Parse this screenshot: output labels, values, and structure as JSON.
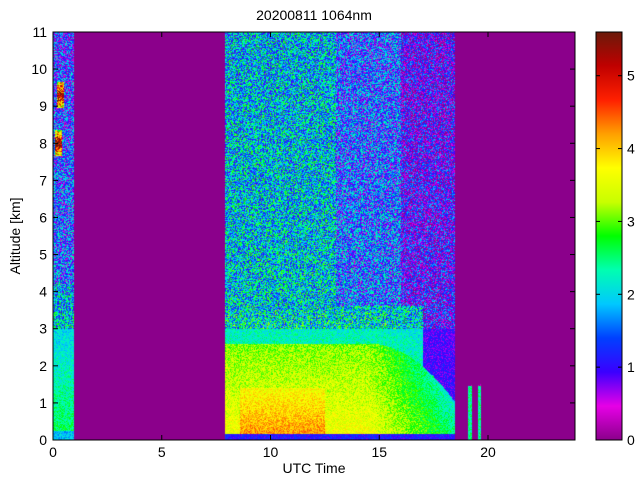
{
  "chart_data": {
    "type": "heatmap",
    "title": "20200811 1064nm",
    "xlabel": "UTC Time",
    "ylabel": "Altitude [km]",
    "xlim": [
      0,
      24
    ],
    "ylim": [
      0,
      11
    ],
    "xticks": [
      0,
      5,
      10,
      15,
      20
    ],
    "yticks": [
      0,
      1,
      2,
      3,
      4,
      5,
      6,
      7,
      8,
      9,
      10,
      11
    ],
    "colorbar": {
      "range": [
        0,
        5.6
      ],
      "ticks": [
        0,
        1,
        2,
        3,
        4,
        5
      ],
      "colormap": [
        "#8b008b",
        "#e600e6",
        "#3a00ff",
        "#0040ff",
        "#00c8ff",
        "#00ffb0",
        "#00ff00",
        "#c8ff00",
        "#ffff00",
        "#ffa000",
        "#ff2000",
        "#c00000",
        "#6b1a0a"
      ]
    },
    "background_value": 0,
    "segments": [
      {
        "t_start": 0.0,
        "t_end": 0.95,
        "top_km": 11
      },
      {
        "t_start": 7.9,
        "t_end": 18.5,
        "top_km": 11
      },
      {
        "t_start": 19.1,
        "t_end": 19.25,
        "top_km": 1.5
      },
      {
        "t_start": 19.55,
        "t_end": 19.7,
        "top_km": 1.5
      }
    ],
    "features": [
      {
        "label": "aerosol layer",
        "t_start": 7.9,
        "t_end": 18.3,
        "alt_top_km": 2.6,
        "peak_value": 4.2
      },
      {
        "label": "cloud",
        "t_start": 0.1,
        "t_end": 0.4,
        "alt_km": 8.0,
        "peak_value": 5.6
      },
      {
        "label": "cloud",
        "t_start": 0.2,
        "t_end": 0.5,
        "alt_km": 9.3,
        "peak_value": 5.6
      }
    ]
  }
}
